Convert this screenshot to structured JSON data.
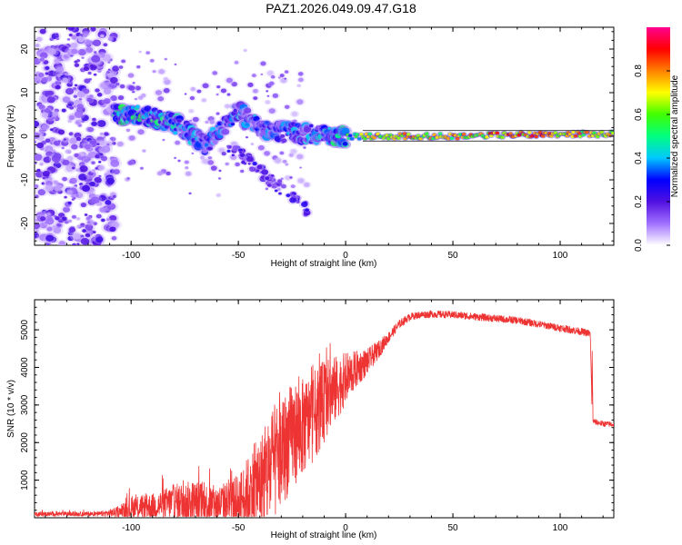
{
  "title": "PAZ1.2026.049.09.47.G18",
  "colors": {
    "snr_line": "#ee3333",
    "axis": "#000000"
  },
  "chart_data": [
    {
      "type": "heatmap",
      "xlabel": "Height of straight line (km)",
      "ylabel": "Frequency (Hz)",
      "xlim": [
        -145,
        125
      ],
      "ylim": [
        -25,
        25
      ],
      "xticks": [
        -100,
        -50,
        0,
        50,
        100
      ],
      "xtick_labels": [
        "-100",
        "-50",
        "0",
        "50",
        "100"
      ],
      "yticks": [
        -20,
        -10,
        0,
        10,
        20
      ],
      "ytick_labels": [
        "-20",
        "-10",
        "0",
        "10",
        "20"
      ],
      "colorbar": {
        "label": "Normalized spectral amplitude",
        "range": [
          0,
          1
        ],
        "ticks": [
          0,
          0.2,
          0.4,
          0.6,
          0.8
        ],
        "tick_labels": [
          "0.0",
          "0.2",
          "0.4",
          "0.6",
          "0.8"
        ],
        "colormap": [
          "#ffffff",
          "#a070ff",
          "#5010e0",
          "#0000ff",
          "#00c8ff",
          "#00ff80",
          "#40ff00",
          "#ffff00",
          "#ff8000",
          "#ff0000",
          "#ff0090"
        ]
      },
      "ridge": {
        "description_points": [
          {
            "x": -108,
            "f": 5,
            "amp": 0.55
          },
          {
            "x": -95,
            "f": 5,
            "amp": 0.6
          },
          {
            "x": -80,
            "f": 3,
            "amp": 0.5
          },
          {
            "x": -65,
            "f": -2,
            "amp": 0.4
          },
          {
            "x": -50,
            "f": 6,
            "amp": 0.45
          },
          {
            "x": -40,
            "f": 2,
            "amp": 0.45
          },
          {
            "x": -30,
            "f": 1,
            "amp": 0.4
          },
          {
            "x": -15,
            "f": 0.5,
            "amp": 0.45
          },
          {
            "x": 0,
            "f": 0,
            "amp": 0.6
          },
          {
            "x": 20,
            "f": 0,
            "amp": 0.9
          },
          {
            "x": 50,
            "f": 0,
            "amp": 0.85
          },
          {
            "x": 90,
            "f": 0.5,
            "amp": 0.95
          },
          {
            "x": 125,
            "f": 0.5,
            "amp": 0.8
          }
        ]
      }
    },
    {
      "type": "line",
      "xlabel": "Height of straight line (km)",
      "ylabel": "SNR (10 * v/v)",
      "xlim": [
        -145,
        125
      ],
      "ylim": [
        0,
        5800
      ],
      "xticks": [
        -100,
        -50,
        0,
        50,
        100
      ],
      "xtick_labels": [
        "-100",
        "-50",
        "0",
        "50",
        "100"
      ],
      "yticks": [
        1000,
        2000,
        3000,
        4000,
        5000
      ],
      "ytick_labels": [
        "1000",
        "2000",
        "3000",
        "4000",
        "5000"
      ],
      "series": [
        {
          "name": "SNR",
          "x": [
            -145,
            -130,
            -115,
            -105,
            -100,
            -90,
            -80,
            -70,
            -60,
            -50,
            -45,
            -40,
            -35,
            -30,
            -25,
            -20,
            -15,
            -10,
            -5,
            0,
            5,
            10,
            15,
            20,
            25,
            30,
            35,
            40,
            50,
            60,
            70,
            80,
            90,
            100,
            110,
            114,
            115,
            116,
            120,
            125
          ],
          "y": [
            100,
            100,
            100,
            150,
            250,
            300,
            400,
            400,
            350,
            450,
            700,
            900,
            1300,
            1700,
            2200,
            2400,
            2700,
            3100,
            3400,
            3700,
            3950,
            4150,
            4450,
            4800,
            5150,
            5350,
            5400,
            5420,
            5400,
            5350,
            5300,
            5250,
            5150,
            5050,
            4950,
            4900,
            2600,
            2550,
            2500,
            2480
          ],
          "noise_amplitude": [
            60,
            60,
            60,
            150,
            300,
            350,
            500,
            600,
            500,
            700,
            1000,
            1300,
            1600,
            1500,
            1400,
            1300,
            1200,
            1100,
            900,
            700,
            500,
            350,
            250,
            150,
            120,
            100,
            100,
            100,
            100,
            100,
            100,
            100,
            100,
            100,
            100,
            100,
            80,
            80,
            80,
            80
          ]
        }
      ]
    }
  ]
}
